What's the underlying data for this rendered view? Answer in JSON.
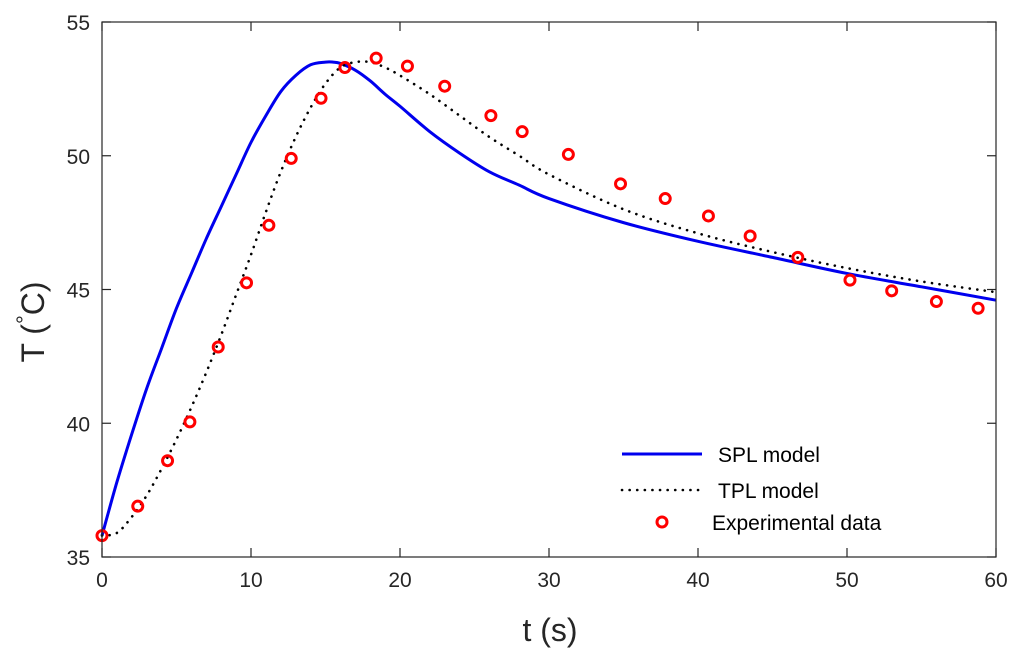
{
  "chart_data": {
    "type": "line",
    "xlabel": "t (s)",
    "ylabel": {
      "prefix": "T (",
      "degree": "°",
      "unit": "C)"
    },
    "xlim": [
      0,
      60
    ],
    "ylim": [
      35,
      55
    ],
    "xticks": [
      0,
      10,
      20,
      30,
      40,
      50,
      60
    ],
    "yticks": [
      35,
      40,
      45,
      50,
      55
    ],
    "grid": false,
    "legend_position": "bottom-right",
    "series": [
      {
        "name": "SPL model",
        "style": "solid",
        "color": "#0000ee",
        "x": [
          0,
          1,
          2,
          3,
          4,
          5,
          6,
          7,
          8,
          9,
          10,
          11,
          12,
          13,
          14,
          15,
          15.5,
          16,
          17,
          18,
          19,
          20,
          22,
          24,
          26,
          28,
          30,
          35,
          40,
          45,
          50,
          55,
          60
        ],
        "y": [
          35.8,
          37.8,
          39.6,
          41.3,
          42.8,
          44.3,
          45.6,
          46.9,
          48.1,
          49.3,
          50.5,
          51.5,
          52.4,
          53.0,
          53.4,
          53.5,
          53.5,
          53.45,
          53.2,
          52.8,
          52.3,
          51.85,
          50.9,
          50.1,
          49.4,
          48.9,
          48.4,
          47.5,
          46.8,
          46.2,
          45.6,
          45.1,
          44.6
        ]
      },
      {
        "name": "TPL model",
        "style": "dotted",
        "color": "#000000",
        "x": [
          0,
          1,
          2,
          3,
          4,
          5,
          6,
          7,
          8,
          9,
          10,
          11,
          12,
          13,
          14,
          15,
          16,
          17,
          18,
          19,
          20,
          22,
          24,
          26,
          28,
          30,
          35,
          40,
          45,
          50,
          55,
          60
        ],
        "y": [
          35.8,
          35.9,
          36.5,
          37.3,
          38.3,
          39.4,
          40.6,
          41.9,
          43.3,
          44.8,
          46.3,
          47.9,
          49.4,
          50.7,
          51.8,
          52.7,
          53.3,
          53.5,
          53.5,
          53.3,
          53.0,
          52.3,
          51.5,
          50.7,
          50.0,
          49.3,
          48.0,
          47.1,
          46.4,
          45.8,
          45.3,
          44.9
        ]
      },
      {
        "name": "Experimental data",
        "style": "markers",
        "color": "#ff0000",
        "x": [
          0,
          2.4,
          4.4,
          5.9,
          7.8,
          9.7,
          11.2,
          12.7,
          14.7,
          16.3,
          18.4,
          20.5,
          23.0,
          26.1,
          28.2,
          31.3,
          34.8,
          37.8,
          40.7,
          43.5,
          46.7,
          50.2,
          53.0,
          56.0,
          58.8
        ],
        "y": [
          35.8,
          36.9,
          38.6,
          40.05,
          42.85,
          45.25,
          47.4,
          49.9,
          52.15,
          53.3,
          53.65,
          53.35,
          52.6,
          51.5,
          50.9,
          50.05,
          48.95,
          48.4,
          47.75,
          47.0,
          46.2,
          45.35,
          44.95,
          44.55,
          44.3
        ]
      }
    ]
  },
  "colors": {
    "axis": "#262626",
    "spl": "#0000ee",
    "tpl": "#000000",
    "experimental": "#ff0000"
  }
}
